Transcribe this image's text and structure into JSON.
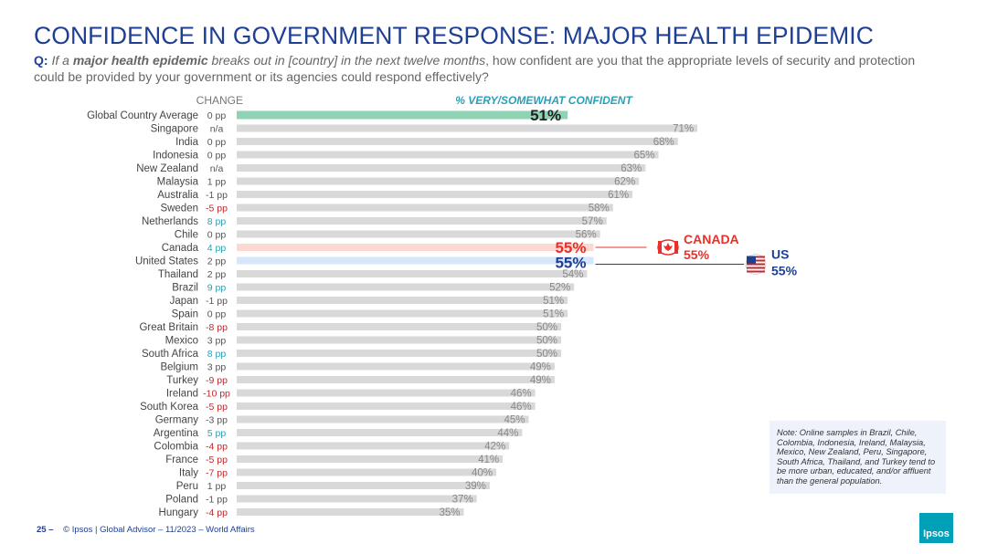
{
  "title": "CONFIDENCE IN GOVERNMENT RESPONSE: MAJOR HEALTH EPIDEMIC",
  "question": {
    "q_label": "Q:",
    "part1": "If a",
    "bold": "major health epidemic",
    "part2": "breaks out in [country] in the next twelve months",
    "part3": ", how confident are you that the appropriate levels of security and protection could be provided by your government or its agencies could respond effectively?"
  },
  "note": "Note: Online samples in Brazil, Chile, Colombia, Indonesia, Ireland, Malaysia, Mexico, New Zealand, Peru, Singapore, South Africa, Thailand, and Turkey tend to be more urban, educated, and/or affluent than the general population.",
  "footer": {
    "page": "25 –",
    "text": "© Ipsos | Global Advisor – 11/2023 – World Affairs"
  },
  "logo": "Ipsos",
  "callouts": {
    "canada": {
      "label": "CANADA",
      "value": "55%"
    },
    "us": {
      "label": "US",
      "value": "55%"
    }
  },
  "colors": {
    "title": "#1f3f93",
    "bar": "#d9d9d9",
    "highlight_avg": "#8fd3b4",
    "highlight_canada": "#fbd9d2",
    "highlight_us": "#d6e6fb",
    "canada": "#e8312a",
    "us": "#1f3f93",
    "positive": "#2aa0b8",
    "negative": "#c0282b",
    "neutral": "#555555"
  },
  "chart_data": {
    "type": "bar",
    "title": "% VERY/SOMEWHAT CONFIDENT",
    "change_header": "CHANGE",
    "xlim": [
      0,
      100
    ],
    "categories": [
      "Global Country Average",
      "Singapore",
      "India",
      "Indonesia",
      "New Zealand",
      "Malaysia",
      "Australia",
      "Sweden",
      "Netherlands",
      "Chile",
      "Canada",
      "United States",
      "Thailand",
      "Brazil",
      "Japan",
      "Spain",
      "Great Britain",
      "Mexico",
      "South Africa",
      "Belgium",
      "Turkey",
      "Ireland",
      "South Korea",
      "Germany",
      "Argentina",
      "Colombia",
      "France",
      "Italy",
      "Peru",
      "Poland",
      "Hungary"
    ],
    "values": [
      51,
      71,
      68,
      65,
      63,
      62,
      61,
      58,
      57,
      56,
      55,
      55,
      54,
      52,
      51,
      51,
      50,
      50,
      50,
      49,
      49,
      46,
      46,
      45,
      44,
      42,
      41,
      40,
      39,
      37,
      35
    ],
    "labels": [
      "51%",
      "71%",
      "68%",
      "65%",
      "63%",
      "62%",
      "61%",
      "58%",
      "57%",
      "56%",
      "55%",
      "55%",
      "54%",
      "52%",
      "51%",
      "51%",
      "50%",
      "50%",
      "50%",
      "49%",
      "49%",
      "46%",
      "46%",
      "45%",
      "44%",
      "42%",
      "41%",
      "40%",
      "39%",
      "37%",
      "35%"
    ],
    "changes": [
      "0 pp",
      "n/a",
      "0 pp",
      "0 pp",
      "n/a",
      "1 pp",
      "-1 pp",
      "-5 pp",
      "8 pp",
      "0 pp",
      "4 pp",
      "2 pp",
      "2 pp",
      "9 pp",
      "-1 pp",
      "0 pp",
      "-8 pp",
      "3 pp",
      "8 pp",
      "3 pp",
      "-9 pp",
      "-10 pp",
      "-5 pp",
      "-3 pp",
      "5 pp",
      "-4 pp",
      "-5 pp",
      "-7 pp",
      "1 pp",
      "-1 pp",
      "-4 pp"
    ],
    "change_direction": [
      "neutral",
      "neutral",
      "neutral",
      "neutral",
      "neutral",
      "neutral",
      "neutral",
      "negative",
      "positive",
      "neutral",
      "positive",
      "neutral",
      "neutral",
      "positive",
      "neutral",
      "neutral",
      "negative",
      "neutral",
      "positive",
      "neutral",
      "negative",
      "negative",
      "negative",
      "neutral",
      "positive",
      "negative",
      "negative",
      "negative",
      "neutral",
      "neutral",
      "negative"
    ],
    "highlight": [
      "avg",
      "",
      "",
      "",
      "",
      "",
      "",
      "",
      "",
      "",
      "canada",
      "us",
      "",
      "",
      "",
      "",
      "",
      "",
      "",
      "",
      "",
      "",
      "",
      "",
      "",
      "",
      "",
      "",
      "",
      "",
      ""
    ]
  }
}
